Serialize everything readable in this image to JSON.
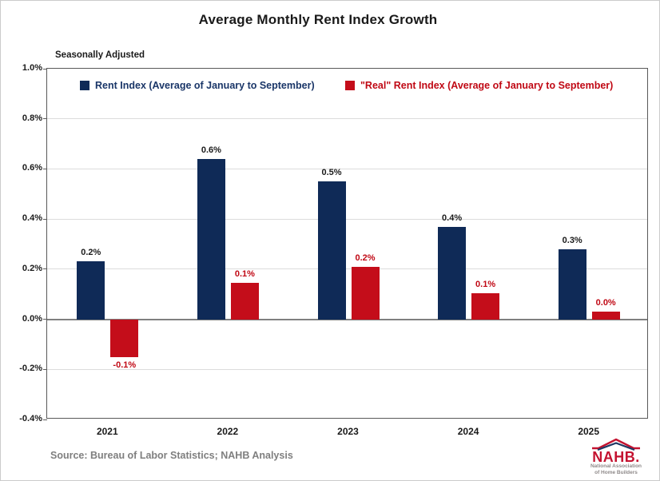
{
  "header": {
    "title": "Average Monthly Rent Index Growth",
    "subtitle": "Seasonally Adjusted"
  },
  "chart_data": {
    "type": "bar",
    "title": "Average Monthly Rent Index Growth",
    "subtitle": "Seasonally Adjusted",
    "categories": [
      "2021",
      "2022",
      "2023",
      "2024",
      "2025"
    ],
    "series": [
      {
        "name": "Rent Index (Average of January to September)",
        "color": "#0f2a57",
        "label_color": "#1a1a1a",
        "values": [
          0.23,
          0.64,
          0.55,
          0.37,
          0.28
        ],
        "labels": [
          "0.2%",
          "0.6%",
          "0.5%",
          "0.4%",
          "0.3%"
        ]
      },
      {
        "name": "\"Real\" Rent Index (Average of January to September)",
        "color": "#c40d1a",
        "label_color": "#c00814",
        "values": [
          -0.15,
          0.145,
          0.21,
          0.105,
          0.03
        ],
        "labels": [
          "-0.1%",
          "0.1%",
          "0.2%",
          "0.1%",
          "0.0%"
        ]
      }
    ],
    "y_axis": {
      "min": -0.4,
      "max": 1.0,
      "step": 0.2,
      "unit": "%",
      "tick_labels": [
        "1.0%",
        "0.8%",
        "0.6%",
        "0.4%",
        "0.2%",
        "0.0%",
        "-0.2%",
        "-0.4%"
      ]
    },
    "grid": true,
    "legend_position": "top-inside",
    "legend_text_colors": [
      "#1a3668",
      "#c00814"
    ]
  },
  "footer": {
    "source": "Source: Bureau of Labor Statistics; NAHB Analysis"
  },
  "logo": {
    "acronym": "NAHB.",
    "line1": "National Association",
    "line2": "of Home Builders",
    "accent_red": "#c41230",
    "accent_blue": "#1f3864"
  }
}
